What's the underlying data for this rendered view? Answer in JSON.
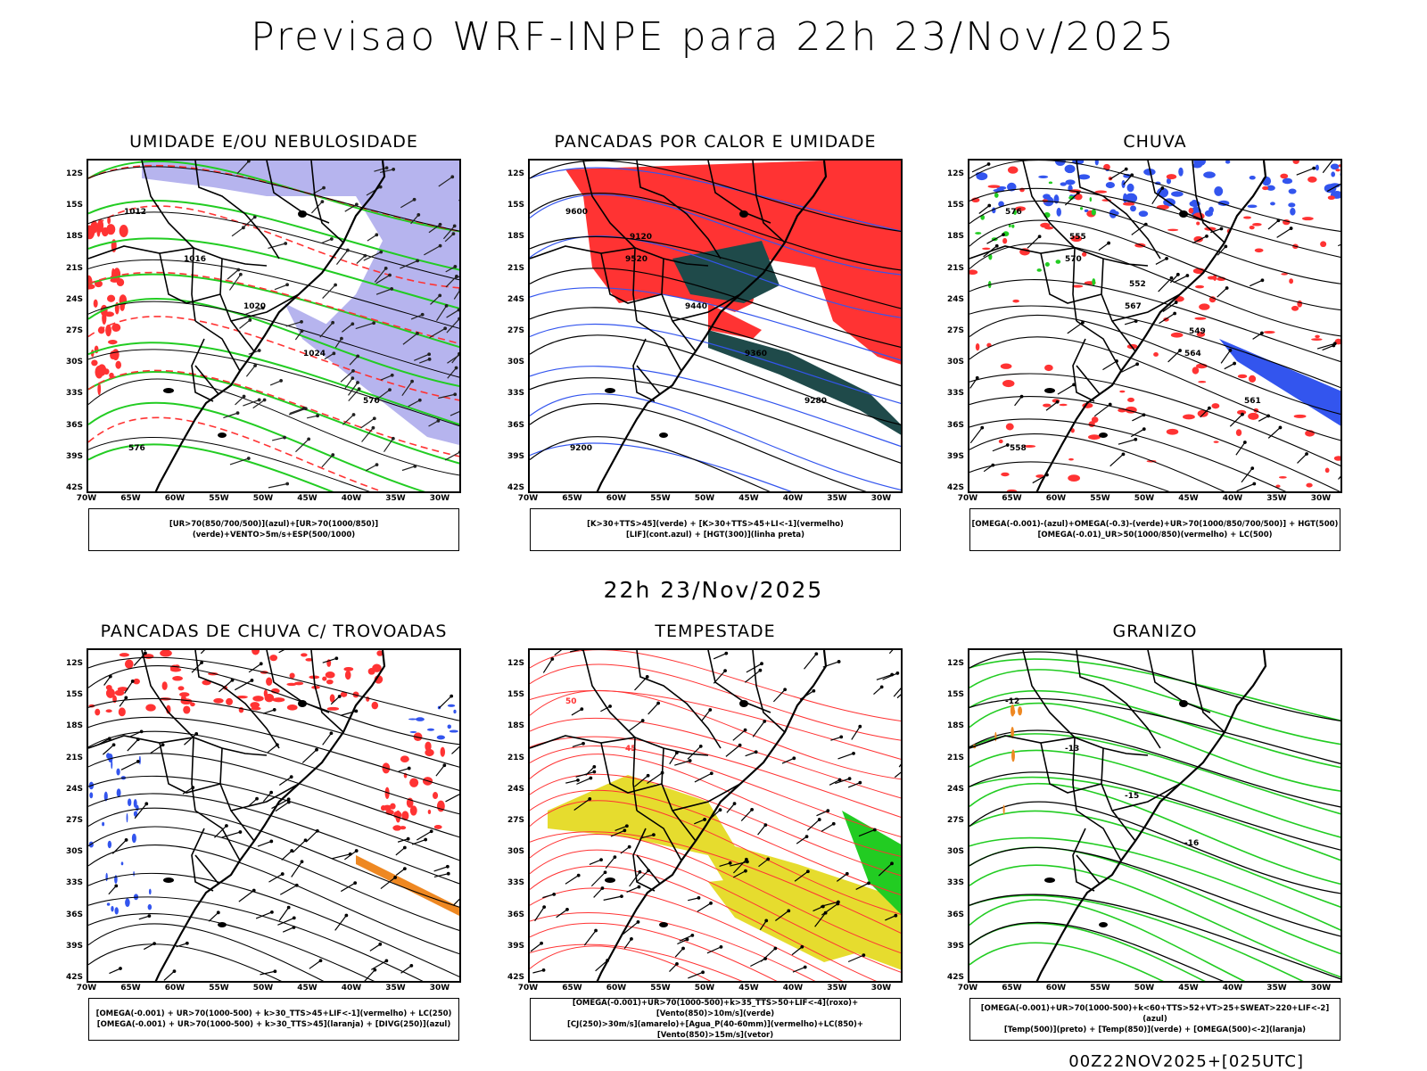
{
  "header": {
    "title": "Previsao WRF-INPE  para 22h 23/Nov/2025",
    "row2_title": "22h 23/Nov/2025",
    "footer": "00Z22NOV2025+[025UTC]"
  },
  "axes": {
    "lat_labels": [
      "12S",
      "15S",
      "18S",
      "21S",
      "24S",
      "27S",
      "30S",
      "33S",
      "36S",
      "39S",
      "42S"
    ],
    "lon_labels": [
      "70W",
      "65W",
      "60W",
      "55W",
      "50W",
      "45W",
      "40W",
      "35W",
      "30W"
    ]
  },
  "colors": {
    "blue": "#3355ee",
    "green": "#22cc22",
    "red": "#ff3333",
    "orange": "#ee8822",
    "yellow": "#e6dc2e",
    "dark_teal": "#1f4a4a",
    "lavender": "#b6b4ee"
  },
  "panels": [
    {
      "title": "UMIDADE E/OU NEBULOSIDADE",
      "legend": [
        "[UR>70(850/700/500)](azul)+[UR>70(1000/850)](verde)+VENTO>5m/s+ESP(500/1000)"
      ],
      "contour_labels": [
        "1012",
        "1016",
        "1020",
        "1024",
        "570",
        "576"
      ]
    },
    {
      "title": "PANCADAS POR CALOR E UMIDADE",
      "legend": [
        "[K>30+TTS>45](verde) + [K>30+TTS>45+LI<-1](vermelho)",
        "[LIF](cont.azul) + [HGT(300)](linha preta)"
      ],
      "contour_labels": [
        "9600",
        "9520",
        "9440",
        "9360",
        "9280",
        "9200",
        "9120"
      ]
    },
    {
      "title": "CHUVA",
      "legend": [
        "[OMEGA(-0.001)-(azul)+OMEGA(-0.3)-(verde)+UR>70(1000/850/700/500)] + HGT(500)",
        "[OMEGA(-0.01)_UR>50(1000/850)(vermelho) + LC(500)"
      ],
      "contour_labels": [
        "576",
        "570",
        "567",
        "564",
        "561",
        "558",
        "555",
        "552",
        "549"
      ]
    },
    {
      "title": "PANCADAS DE CHUVA C/ TROVOADAS",
      "legend": [
        "[OMEGA(-0.001) + UR>70(1000-500) + k>30_TTS>45+LIF<-1](vermelho) + LC(250)",
        "[OMEGA(-0.001) + UR>70(1000-500) + k>30_TTS>45](laranja) + [DIVG(250)](azul)"
      ],
      "contour_labels": []
    },
    {
      "title": "TEMPESTADE",
      "legend": [
        "[OMEGA(-0.001)+UR>70(1000-500)+k>35_TTS>50+LIF<-4](roxo)+[Vento(850)>10m/s](verde)",
        "[CJ(250)>30m/s](amarelo)+[Agua_P(40-60mm)](vermelho)+LC(850)+[Vento(850)>15m/s](vetor)"
      ],
      "contour_labels": [
        "50",
        "45"
      ]
    },
    {
      "title": "GRANIZO",
      "legend": [
        "[OMEGA(-0.001)+UR>70(1000-500)+k<60+TTS>52+VT>25+SWEAT>220+LIF<-2](azul)",
        "[Temp(500)](preto) + [Temp(850)](verde) + [OMEGA(500)<-2](laranja)"
      ],
      "contour_labels": [
        "-12",
        "-13",
        "-15",
        "-16"
      ]
    }
  ]
}
